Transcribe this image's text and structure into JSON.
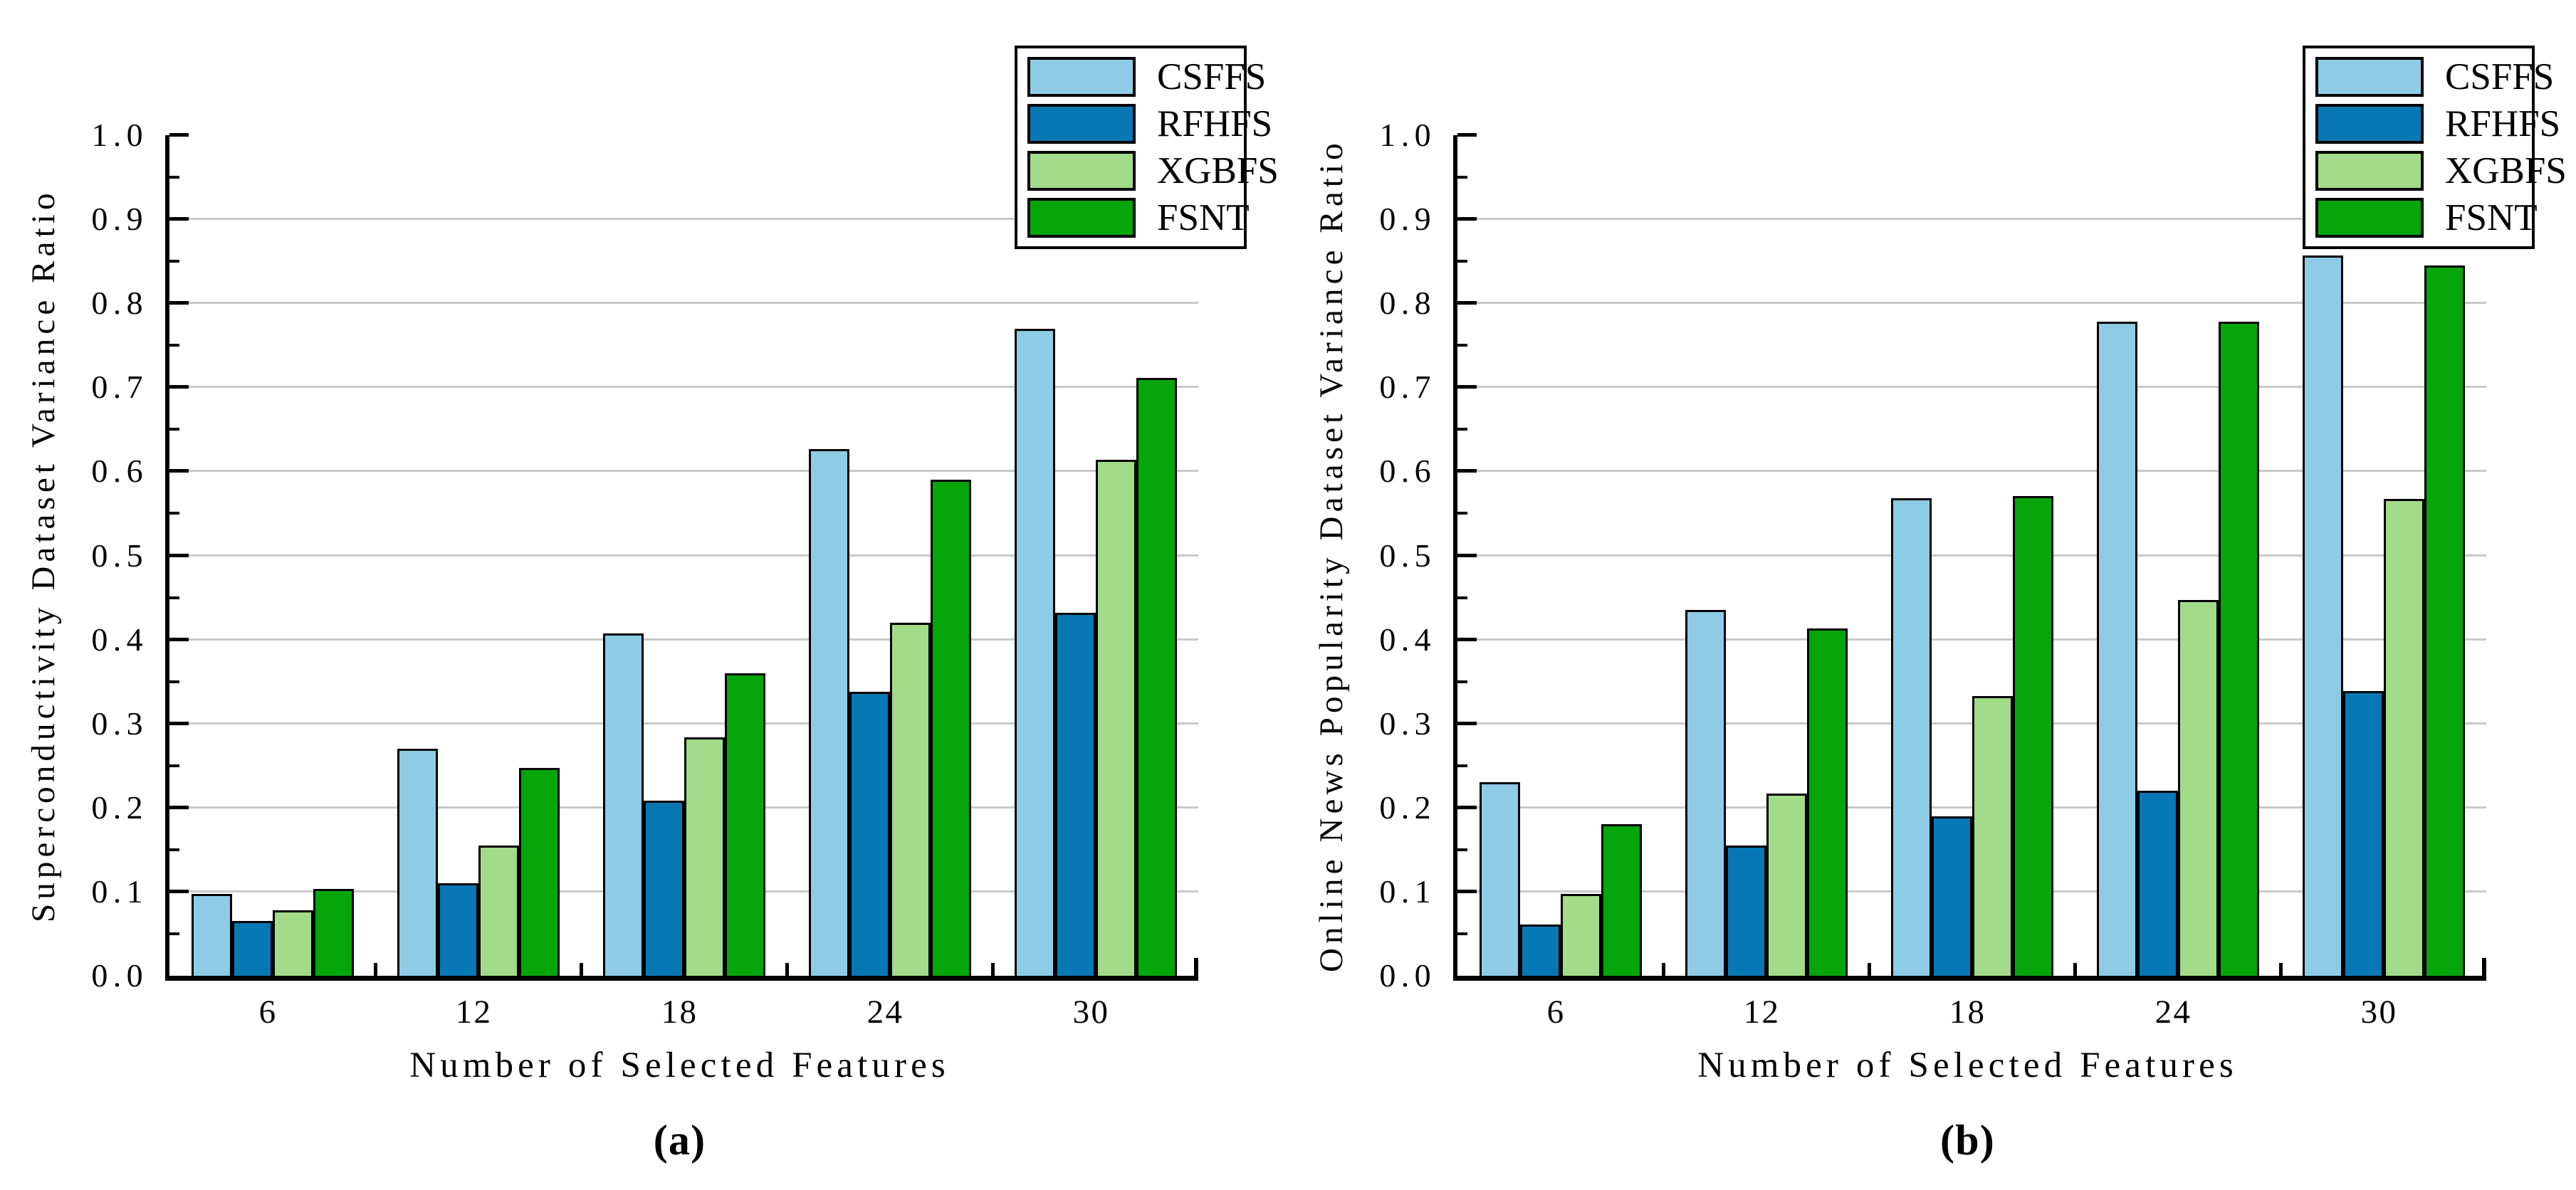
{
  "figure": {
    "background": "#ffffff",
    "grid_color": "#c9c9c9",
    "bar_edge_color": "#000000",
    "series_colors": {
      "CSFFS": "#8ECCE5",
      "RFHFS": "#0878B4",
      "XGBFS": "#A2DB8A",
      "FSNT": "#05A50C"
    }
  },
  "chart_data": [
    {
      "type": "bar",
      "panel": "a",
      "caption": "(a)",
      "xlabel": "Number of Selected Features",
      "ylabel": "Superconductivity Dataset Variance Ratio",
      "categories": [
        "6",
        "12",
        "18",
        "24",
        "30"
      ],
      "series": [
        {
          "name": "CSFFS",
          "color": "#8ECCE5",
          "values": [
            0.097,
            0.27,
            0.407,
            0.627,
            0.77
          ]
        },
        {
          "name": "RFHFS",
          "color": "#0878B4",
          "values": [
            0.065,
            0.11,
            0.208,
            0.338,
            0.432
          ]
        },
        {
          "name": "XGBFS",
          "color": "#A2DB8A",
          "values": [
            0.078,
            0.155,
            0.284,
            0.42,
            0.614
          ]
        },
        {
          "name": "FSNT",
          "color": "#05A50C",
          "values": [
            0.103,
            0.247,
            0.36,
            0.59,
            0.711
          ]
        }
      ],
      "ylim": [
        0.0,
        1.0
      ],
      "yticks": [
        "0.0",
        "0.1",
        "0.2",
        "0.3",
        "0.4",
        "0.5",
        "0.6",
        "0.7",
        "0.8",
        "0.9",
        "1.0"
      ],
      "minor_tick_step": 0.05,
      "grid": true,
      "legend_position": "upper-right",
      "legend_labels": [
        "CSFFS",
        "RFHFS",
        "XGBFS",
        "FSNT"
      ]
    },
    {
      "type": "bar",
      "panel": "b",
      "caption": "(b)",
      "xlabel": "Number of Selected Features",
      "ylabel": "Online News Popularity Dataset Variance Ratio",
      "categories": [
        "6",
        "12",
        "18",
        "24",
        "30"
      ],
      "series": [
        {
          "name": "CSFFS",
          "color": "#8ECCE5",
          "values": [
            0.23,
            0.435,
            0.568,
            0.778,
            0.857
          ]
        },
        {
          "name": "RFHFS",
          "color": "#0878B4",
          "values": [
            0.061,
            0.155,
            0.19,
            0.22,
            0.339
          ]
        },
        {
          "name": "XGBFS",
          "color": "#A2DB8A",
          "values": [
            0.097,
            0.217,
            0.333,
            0.447,
            0.567
          ]
        },
        {
          "name": "FSNT",
          "color": "#05A50C",
          "values": [
            0.18,
            0.413,
            0.571,
            0.778,
            0.845
          ]
        }
      ],
      "ylim": [
        0.0,
        1.0
      ],
      "yticks": [
        "0.0",
        "0.1",
        "0.2",
        "0.3",
        "0.4",
        "0.5",
        "0.6",
        "0.7",
        "0.8",
        "0.9",
        "1.0"
      ],
      "minor_tick_step": 0.05,
      "grid": true,
      "legend_position": "upper-right",
      "legend_labels": [
        "CSFFS",
        "RFHFS",
        "XGBFS",
        "FSNT"
      ]
    }
  ]
}
